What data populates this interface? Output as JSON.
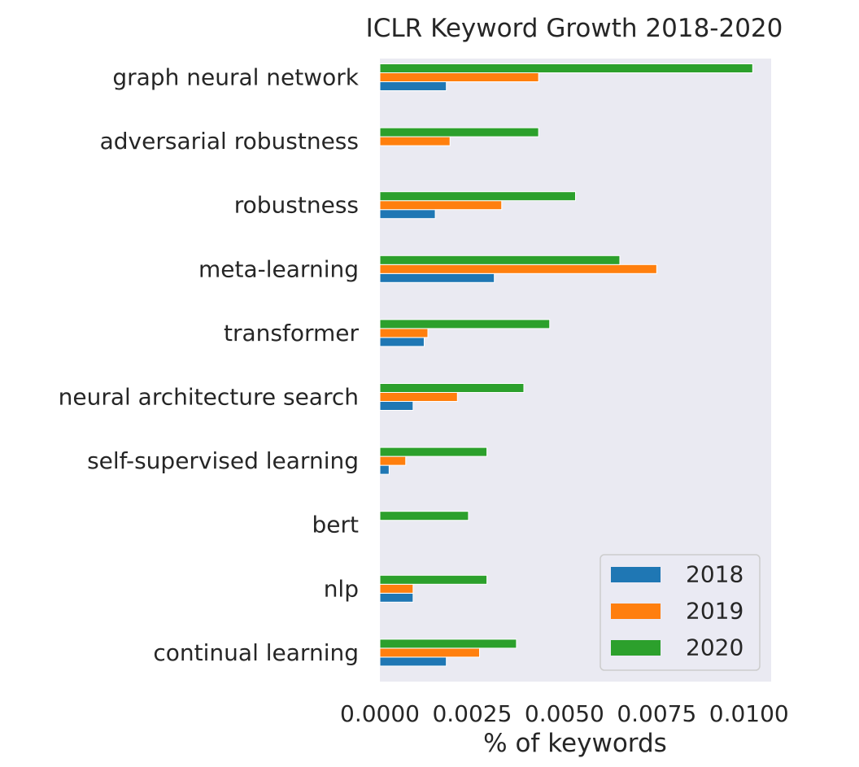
{
  "chart_data": {
    "type": "bar",
    "orientation": "horizontal",
    "title": "ICLR Keyword Growth 2018-2020",
    "xlabel": "% of keywords",
    "ylabel": "",
    "xlim": [
      0,
      0.0106
    ],
    "xticks": [
      0.0,
      0.0025,
      0.005,
      0.0075,
      0.01
    ],
    "xtick_labels": [
      "0.0000",
      "0.0025",
      "0.0050",
      "0.0075",
      "0.0100"
    ],
    "grid": false,
    "legend_position": "lower-right",
    "categories": [
      "graph neural network",
      "adversarial robustness",
      "robustness",
      "meta-learning",
      "transformer",
      "neural architecture search",
      "self-supervised learning",
      "bert",
      "nlp",
      "continual learning"
    ],
    "series": [
      {
        "name": "2018",
        "color": "#1f77b4",
        "values": [
          0.0018,
          0.0,
          0.0015,
          0.0031,
          0.0012,
          0.0009,
          0.00025,
          0.0,
          0.0009,
          0.0018
        ]
      },
      {
        "name": "2019",
        "color": "#ff7f0e",
        "values": [
          0.0043,
          0.0019,
          0.0033,
          0.0075,
          0.0013,
          0.0021,
          0.0007,
          0.0,
          0.0009,
          0.0027
        ]
      },
      {
        "name": "2020",
        "color": "#2ca02c",
        "values": [
          0.0101,
          0.0043,
          0.0053,
          0.0065,
          0.0046,
          0.0039,
          0.0029,
          0.0024,
          0.0029,
          0.0037
        ]
      }
    ]
  }
}
